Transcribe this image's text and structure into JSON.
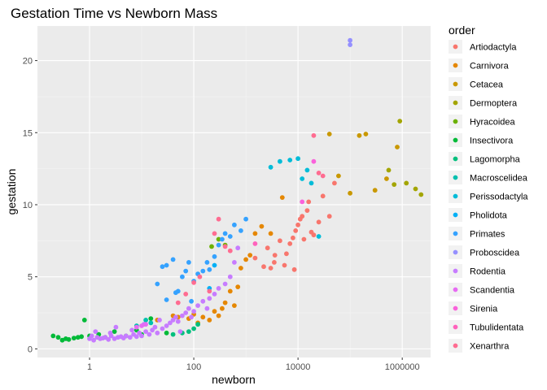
{
  "chart_data": {
    "type": "scatter",
    "title": "Gestation Time vs Newborn Mass",
    "xlabel": "newborn",
    "ylabel": "gestation",
    "x_scale": "log10",
    "xlim": [
      0.1,
      3500000
    ],
    "ylim": [
      -0.6,
      22.4
    ],
    "x_ticks": [
      {
        "value": 1,
        "label": "1"
      },
      {
        "value": 100,
        "label": "100"
      },
      {
        "value": 10000,
        "label": "10000"
      },
      {
        "value": 1000000,
        "label": "1000000"
      }
    ],
    "y_ticks": [
      {
        "value": 0,
        "label": "0"
      },
      {
        "value": 5,
        "label": "5"
      },
      {
        "value": 10,
        "label": "10"
      },
      {
        "value": 15,
        "label": "15"
      },
      {
        "value": 20,
        "label": "20"
      }
    ],
    "grid": true,
    "legend": {
      "title": "order",
      "placement": "right"
    },
    "series": [
      {
        "name": "Artiodactyla",
        "color": "#F8766D",
        "points": [
          [
            1500,
            6.3
          ],
          [
            2200,
            5.7
          ],
          [
            3000,
            5.6
          ],
          [
            3500,
            6.0
          ],
          [
            4500,
            7.5
          ],
          [
            6000,
            6.6
          ],
          [
            7000,
            7.3
          ],
          [
            8000,
            7.7
          ],
          [
            9000,
            8.2
          ],
          [
            10000,
            8.6
          ],
          [
            12000,
            9.2
          ],
          [
            15000,
            9.6
          ],
          [
            18000,
            8.1
          ],
          [
            20000,
            7.9
          ],
          [
            25000,
            8.8
          ],
          [
            30000,
            10.6
          ],
          [
            40000,
            9.2
          ],
          [
            50000,
            11.5
          ],
          [
            8500,
            5.5
          ],
          [
            2600,
            7.0
          ],
          [
            5500,
            5.8
          ],
          [
            11000,
            9.0
          ],
          [
            16000,
            10.2
          ],
          [
            3600,
            6.5
          ],
          [
            13000,
            7.6
          ]
        ]
      },
      {
        "name": "Carnivora",
        "color": "#E58700",
        "points": [
          [
            50,
            2.2
          ],
          [
            80,
            2.1
          ],
          [
            100,
            2.4
          ],
          [
            150,
            2.2
          ],
          [
            200,
            2.0
          ],
          [
            250,
            2.6
          ],
          [
            300,
            2.3
          ],
          [
            400,
            3.2
          ],
          [
            500,
            4.0
          ],
          [
            600,
            3.0
          ],
          [
            800,
            5.6
          ],
          [
            1000,
            6.2
          ],
          [
            1500,
            8.0
          ],
          [
            2000,
            8.5
          ],
          [
            3000,
            8.0
          ],
          [
            5000,
            10.5
          ],
          [
            20,
            2.0
          ],
          [
            40,
            2.3
          ],
          [
            120,
            1.8
          ],
          [
            350,
            2.8
          ],
          [
            700,
            4.3
          ],
          [
            1200,
            6.5
          ]
        ]
      },
      {
        "name": "Cetacea",
        "color": "#C99800",
        "points": [
          [
            40000,
            14.9
          ],
          [
            60000,
            12.0
          ],
          [
            100000,
            10.8
          ],
          [
            150000,
            14.8
          ],
          [
            200000,
            14.9
          ],
          [
            300000,
            11.0
          ],
          [
            500000,
            11.8
          ],
          [
            800000,
            14.0
          ]
        ]
      },
      {
        "name": "Dermoptera",
        "color": "#A3A500",
        "points": [
          [
            900000,
            15.8
          ],
          [
            550000,
            12.4
          ],
          [
            700000,
            11.4
          ],
          [
            1200000,
            11.5
          ],
          [
            1800000,
            11.1
          ],
          [
            2300000,
            10.7
          ]
        ]
      },
      {
        "name": "Hyracoidea",
        "color": "#6BB100",
        "points": [
          [
            220,
            7.1
          ],
          [
            300,
            7.6
          ],
          [
            400,
            7.2
          ]
        ]
      },
      {
        "name": "Insectivora",
        "color": "#00BA38",
        "points": [
          [
            0.2,
            0.9
          ],
          [
            0.25,
            0.8
          ],
          [
            0.3,
            0.6
          ],
          [
            0.35,
            0.7
          ],
          [
            0.4,
            0.65
          ],
          [
            0.5,
            0.75
          ],
          [
            0.6,
            0.8
          ],
          [
            0.7,
            0.85
          ],
          [
            0.8,
            2.0
          ],
          [
            1,
            0.9
          ],
          [
            1.5,
            1.0
          ],
          [
            2,
            0.8
          ],
          [
            3,
            1.2
          ],
          [
            5,
            0.9
          ],
          [
            8,
            1.3
          ],
          [
            10,
            1.0
          ],
          [
            15,
            2.1
          ],
          [
            30,
            1.1
          ]
        ]
      },
      {
        "name": "Lagomorpha",
        "color": "#00BF7D",
        "points": [
          [
            40,
            1.0
          ],
          [
            60,
            1.1
          ],
          [
            80,
            1.2
          ],
          [
            100,
            1.4
          ],
          [
            120,
            1.7
          ]
        ]
      },
      {
        "name": "Macroscelidea",
        "color": "#00C0AF",
        "points": [
          [
            8,
            1.6
          ],
          [
            12,
            2.0
          ],
          [
            15,
            1.8
          ]
        ]
      },
      {
        "name": "Perissodactyla",
        "color": "#00BCD8",
        "points": [
          [
            3000,
            12.6
          ],
          [
            4500,
            13.0
          ],
          [
            7000,
            13.1
          ],
          [
            10000,
            13.2
          ],
          [
            12000,
            11.8
          ],
          [
            15000,
            12.4
          ],
          [
            18000,
            11.5
          ],
          [
            25000,
            7.8
          ]
        ]
      },
      {
        "name": "Pholidota",
        "color": "#00B0F6",
        "points": [
          [
            200,
            4.2
          ],
          [
            250,
            5.8
          ]
        ]
      },
      {
        "name": "Primates",
        "color": "#35A2FF",
        "points": [
          [
            20,
            4.5
          ],
          [
            25,
            5.7
          ],
          [
            30,
            5.8
          ],
          [
            40,
            6.2
          ],
          [
            50,
            4.0
          ],
          [
            60,
            5.0
          ],
          [
            70,
            5.4
          ],
          [
            80,
            6.0
          ],
          [
            100,
            4.7
          ],
          [
            120,
            5.2
          ],
          [
            150,
            5.4
          ],
          [
            180,
            6.0
          ],
          [
            200,
            5.5
          ],
          [
            250,
            6.4
          ],
          [
            300,
            7.2
          ],
          [
            350,
            7.6
          ],
          [
            400,
            8.0
          ],
          [
            500,
            7.8
          ],
          [
            600,
            8.6
          ],
          [
            800,
            8.2
          ],
          [
            1000,
            9.0
          ],
          [
            30,
            3.4
          ],
          [
            45,
            3.9
          ],
          [
            90,
            3.3
          ]
        ]
      },
      {
        "name": "Proboscidea",
        "color": "#9590FF",
        "points": [
          [
            100000,
            21.4
          ],
          [
            100000,
            21.1
          ]
        ]
      },
      {
        "name": "Rodentia",
        "color": "#C77CFF",
        "points": [
          [
            1,
            0.7
          ],
          [
            1.2,
            0.6
          ],
          [
            1.4,
            0.8
          ],
          [
            1.6,
            0.7
          ],
          [
            1.8,
            0.75
          ],
          [
            2,
            0.8
          ],
          [
            2.3,
            0.65
          ],
          [
            2.6,
            0.9
          ],
          [
            3,
            0.7
          ],
          [
            3.5,
            0.8
          ],
          [
            4,
            0.85
          ],
          [
            4.5,
            0.75
          ],
          [
            5,
            0.9
          ],
          [
            6,
            0.8
          ],
          [
            7,
            1.0
          ],
          [
            8,
            0.85
          ],
          [
            9,
            1.1
          ],
          [
            10,
            0.9
          ],
          [
            12,
            1.2
          ],
          [
            14,
            1.0
          ],
          [
            16,
            1.3
          ],
          [
            18,
            1.5
          ],
          [
            20,
            1.1
          ],
          [
            25,
            1.4
          ],
          [
            30,
            1.6
          ],
          [
            35,
            1.8
          ],
          [
            40,
            2.0
          ],
          [
            45,
            2.2
          ],
          [
            50,
            1.9
          ],
          [
            60,
            2.3
          ],
          [
            70,
            2.5
          ],
          [
            80,
            2.8
          ],
          [
            100,
            2.6
          ],
          [
            120,
            3.0
          ],
          [
            150,
            3.3
          ],
          [
            200,
            3.5
          ],
          [
            250,
            3.8
          ],
          [
            300,
            4.2
          ],
          [
            400,
            4.5
          ],
          [
            500,
            5.0
          ],
          [
            600,
            6.0
          ],
          [
            700,
            7.0
          ],
          [
            1.3,
            1.2
          ],
          [
            2.5,
            1.1
          ],
          [
            1.1,
            0.9
          ],
          [
            3.2,
            1.5
          ],
          [
            6.5,
            1.3
          ],
          [
            11,
            1.7
          ],
          [
            22,
            2.0
          ],
          [
            55,
            1.2
          ],
          [
            90,
            2.2
          ],
          [
            180,
            2.8
          ]
        ]
      },
      {
        "name": "Scandentia",
        "color": "#E76BF3",
        "points": [
          [
            8,
            1.5
          ],
          [
            10,
            1.6
          ],
          [
            12,
            1.7
          ]
        ]
      },
      {
        "name": "Sirenia",
        "color": "#FA62DB",
        "points": [
          [
            12000,
            10.2
          ],
          [
            20000,
            13.0
          ]
        ]
      },
      {
        "name": "Tubulidentata",
        "color": "#FF62BC",
        "points": [
          [
            1500,
            7.3
          ]
        ]
      },
      {
        "name": "Xenarthra",
        "color": "#FF6C91",
        "points": [
          [
            50,
            3.2
          ],
          [
            70,
            3.8
          ],
          [
            100,
            4.6
          ],
          [
            130,
            5.0
          ],
          [
            200,
            4.0
          ],
          [
            250,
            8.0
          ],
          [
            300,
            9.0
          ],
          [
            400,
            7.1
          ],
          [
            500,
            6.8
          ],
          [
            20000,
            14.8
          ],
          [
            30000,
            12.0
          ],
          [
            25000,
            12.2
          ]
        ]
      }
    ]
  }
}
